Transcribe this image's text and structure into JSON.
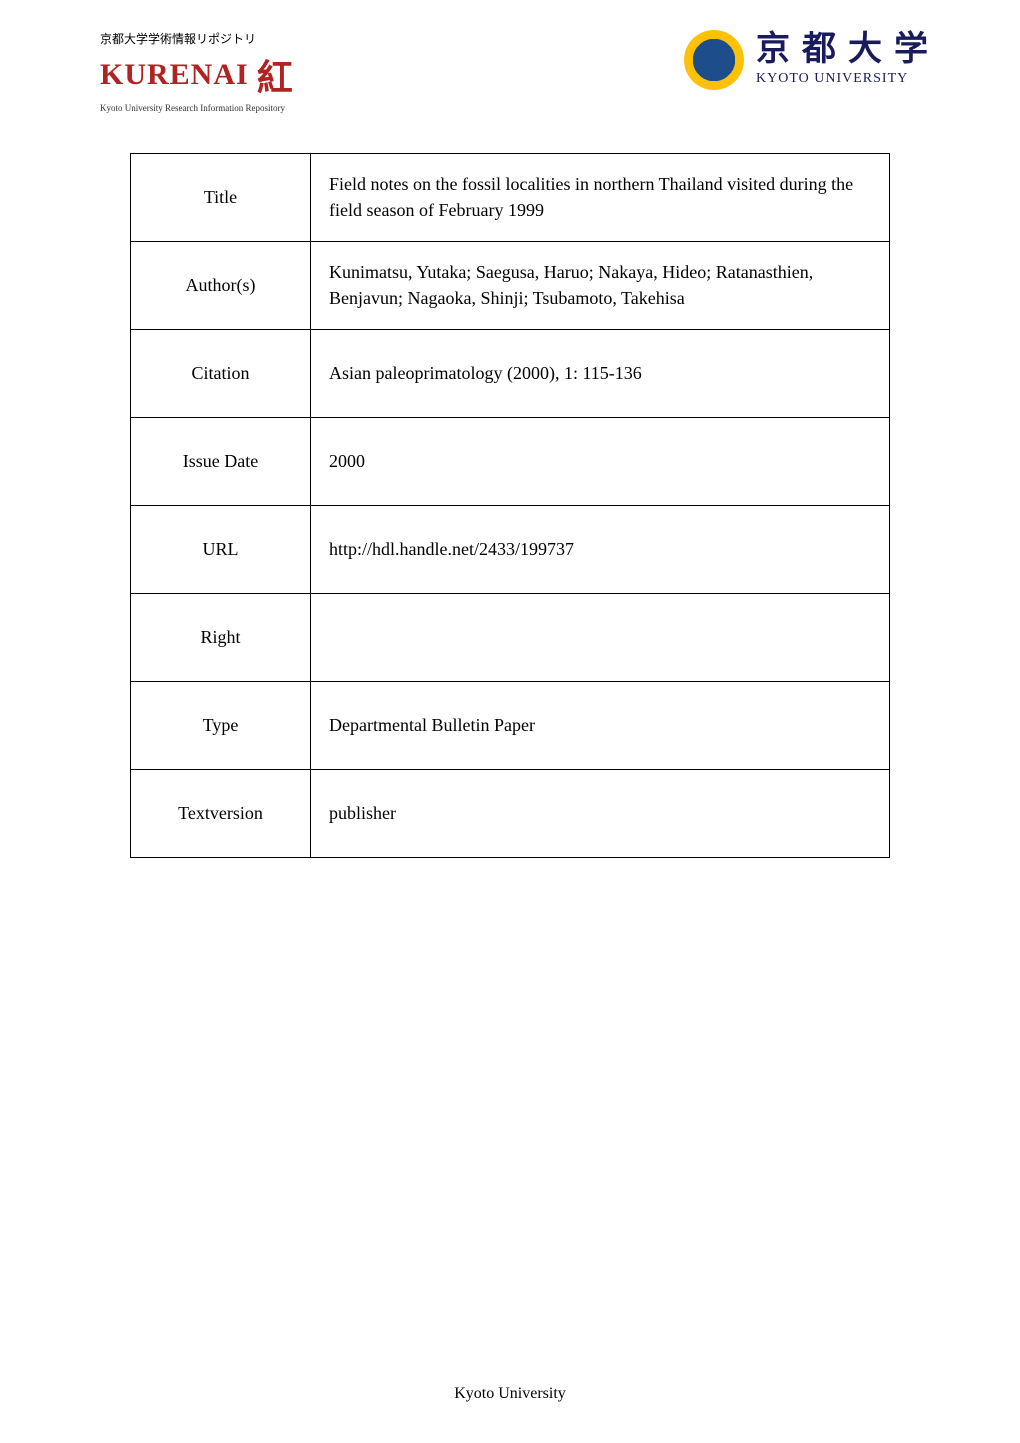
{
  "header": {
    "left_logo": {
      "jp_text": "京都大学学術情報リポジトリ",
      "main_text": "KURENAI",
      "kanji": "紅",
      "sub_text": "Kyoto University Research Information Repository"
    },
    "right_logo": {
      "jp_text": "京都大学",
      "en_text": "KYOTO UNIVERSITY"
    }
  },
  "metadata": {
    "rows": [
      {
        "label": "Title",
        "value": "Field notes on the fossil localities in northern Thailand visited during the field season of February 1999"
      },
      {
        "label": "Author(s)",
        "value": "Kunimatsu, Yutaka; Saegusa, Haruo; Nakaya, Hideo; Ratanasthien, Benjavun; Nagaoka, Shinji; Tsubamoto, Takehisa"
      },
      {
        "label": "Citation",
        "value": "Asian paleoprimatology (2000), 1: 115-136"
      },
      {
        "label": "Issue Date",
        "value": "2000"
      },
      {
        "label": "URL",
        "value": "http://hdl.handle.net/2433/199737"
      },
      {
        "label": "Right",
        "value": ""
      },
      {
        "label": "Type",
        "value": "Departmental Bulletin Paper"
      },
      {
        "label": "Textversion",
        "value": "publisher"
      }
    ]
  },
  "footer": {
    "text": "Kyoto University"
  }
}
